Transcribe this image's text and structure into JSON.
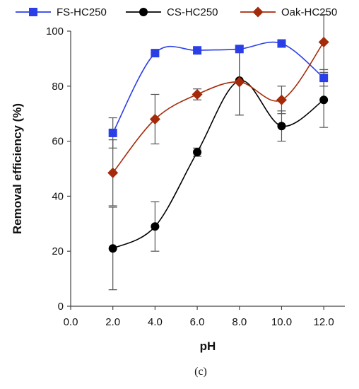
{
  "chart_data": {
    "type": "line",
    "title": "",
    "xlabel": "pH",
    "ylabel": "Removal efficiency (%)",
    "caption": "(c)",
    "xlim": [
      0,
      13
    ],
    "ylim": [
      0,
      100
    ],
    "x_ticks": [
      0,
      2,
      4,
      6,
      8,
      10,
      12
    ],
    "x_tick_labels": [
      "0.0",
      "2.0",
      "4.0",
      "6.0",
      "8.0",
      "10.0",
      "12.0"
    ],
    "y_ticks": [
      0,
      20,
      40,
      60,
      80,
      100
    ],
    "y_tick_labels": [
      "0",
      "20",
      "40",
      "60",
      "80",
      "100"
    ],
    "grid": false,
    "legend_position": "top",
    "x": [
      2,
      4,
      6,
      8,
      10,
      12
    ],
    "series": [
      {
        "name": "FS-HC250",
        "color": "#2b3fe6",
        "marker": "square",
        "values": [
          63,
          92,
          93,
          93.5,
          95.5,
          83
        ],
        "error": [
          5.5,
          0,
          0,
          0,
          0,
          3
        ]
      },
      {
        "name": "CS-HC250",
        "color": "#000000",
        "marker": "circle",
        "values": [
          21,
          29,
          56,
          82,
          65.5,
          75
        ],
        "error": [
          15,
          9,
          1.5,
          12.5,
          5.5,
          10
        ]
      },
      {
        "name": "Oak-HC250",
        "color": "#a52a0a",
        "marker": "diamond",
        "values": [
          48.5,
          68,
          77,
          81.5,
          75,
          96
        ],
        "error": [
          12,
          9,
          2,
          12,
          5,
          10
        ]
      }
    ]
  }
}
